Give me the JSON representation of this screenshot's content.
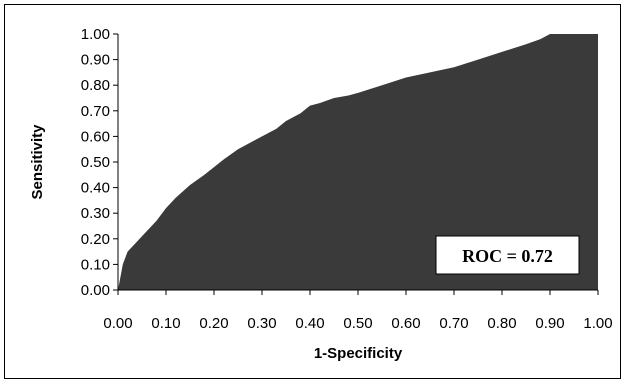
{
  "chart_data": {
    "type": "area",
    "xlabel": "1-Specificity",
    "ylabel": "Sensitivity",
    "xlim": [
      0,
      1
    ],
    "ylim": [
      0,
      1
    ],
    "xticks": [
      "0.00",
      "0.10",
      "0.20",
      "0.30",
      "0.40",
      "0.50",
      "0.60",
      "0.70",
      "0.80",
      "0.90",
      "1.00"
    ],
    "yticks": [
      "0.00",
      "0.10",
      "0.20",
      "0.30",
      "0.40",
      "0.50",
      "0.60",
      "0.70",
      "0.80",
      "0.90",
      "1.00"
    ],
    "grid": false,
    "fill_color": "#3a3a3a",
    "annotation": "ROC = 0.72",
    "curve": {
      "x": [
        0,
        0.005,
        0.01,
        0.02,
        0.03,
        0.05,
        0.08,
        0.1,
        0.12,
        0.15,
        0.18,
        0.2,
        0.22,
        0.25,
        0.28,
        0.3,
        0.33,
        0.35,
        0.38,
        0.4,
        0.42,
        0.45,
        0.48,
        0.5,
        0.55,
        0.6,
        0.65,
        0.7,
        0.75,
        0.8,
        0.85,
        0.88,
        0.9,
        1.0
      ],
      "y": [
        0,
        0.05,
        0.1,
        0.15,
        0.17,
        0.21,
        0.27,
        0.32,
        0.36,
        0.41,
        0.45,
        0.48,
        0.51,
        0.55,
        0.58,
        0.6,
        0.63,
        0.66,
        0.69,
        0.72,
        0.73,
        0.75,
        0.76,
        0.77,
        0.8,
        0.83,
        0.85,
        0.87,
        0.9,
        0.93,
        0.96,
        0.98,
        1.0,
        1.0
      ]
    }
  }
}
